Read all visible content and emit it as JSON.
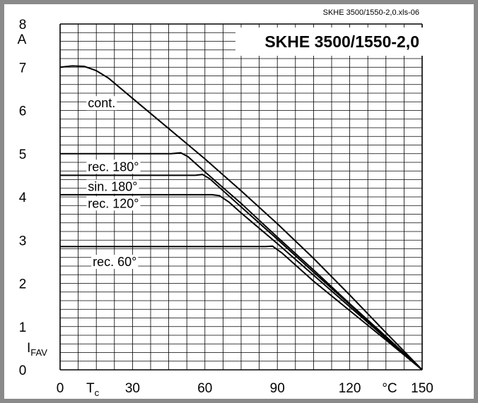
{
  "chart_data": {
    "type": "line",
    "title": "SKHE 3500/1550-2,0",
    "file_label": "SKHE 3500/1550-2,0.xls-06",
    "xlabel": "T",
    "xlabel_sub": "c",
    "xunit": "°C",
    "ylabel": "I",
    "ylabel_sub": "FAV",
    "yunit": "A",
    "xlim": [
      0,
      150
    ],
    "ylim": [
      0,
      8
    ],
    "grid": true,
    "x_ticks": [
      "0",
      "30",
      "60",
      "90",
      "120",
      "150"
    ],
    "y_ticks": [
      "0",
      "1",
      "2",
      "3",
      "4",
      "5",
      "6",
      "7",
      "8"
    ],
    "series": [
      {
        "name": "cont.",
        "points": [
          [
            0,
            7.0
          ],
          [
            5,
            7.03
          ],
          [
            10,
            7.02
          ],
          [
            15,
            6.92
          ],
          [
            20,
            6.75
          ],
          [
            30,
            6.28
          ],
          [
            45,
            5.58
          ],
          [
            60,
            4.88
          ],
          [
            75,
            4.14
          ],
          [
            90,
            3.38
          ],
          [
            105,
            2.58
          ],
          [
            120,
            1.73
          ],
          [
            135,
            0.86
          ],
          [
            150,
            0
          ]
        ]
      },
      {
        "name": "rec. 180°",
        "points": [
          [
            0,
            5.0
          ],
          [
            46,
            5.0
          ],
          [
            50,
            5.02
          ],
          [
            53,
            4.93
          ],
          [
            60,
            4.58
          ],
          [
            75,
            3.85
          ],
          [
            90,
            3.07
          ],
          [
            105,
            2.31
          ],
          [
            120,
            1.53
          ],
          [
            135,
            0.77
          ],
          [
            150,
            0
          ]
        ]
      },
      {
        "name": "sin. 180°",
        "points": [
          [
            0,
            4.5
          ],
          [
            56,
            4.5
          ],
          [
            59,
            4.52
          ],
          [
            62,
            4.42
          ],
          [
            75,
            3.77
          ],
          [
            90,
            3.02
          ],
          [
            105,
            2.26
          ],
          [
            120,
            1.51
          ],
          [
            135,
            0.75
          ],
          [
            150,
            0
          ]
        ]
      },
      {
        "name": "rec. 120°",
        "points": [
          [
            0,
            4.05
          ],
          [
            63,
            4.05
          ],
          [
            66,
            4.03
          ],
          [
            70,
            3.88
          ],
          [
            75,
            3.63
          ],
          [
            90,
            2.92
          ],
          [
            105,
            2.19
          ],
          [
            120,
            1.46
          ],
          [
            135,
            0.73
          ],
          [
            150,
            0
          ]
        ]
      },
      {
        "name": "rec. 60°",
        "points": [
          [
            0,
            2.85
          ],
          [
            85,
            2.85
          ],
          [
            88,
            2.86
          ],
          [
            92,
            2.7
          ],
          [
            105,
            2.05
          ],
          [
            120,
            1.37
          ],
          [
            135,
            0.69
          ],
          [
            150,
            0
          ]
        ]
      }
    ]
  }
}
